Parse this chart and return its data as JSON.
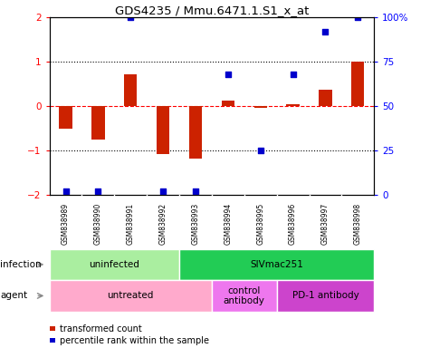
{
  "title": "GDS4235 / Mmu.6471.1.S1_x_at",
  "samples": [
    "GSM838989",
    "GSM838990",
    "GSM838991",
    "GSM838992",
    "GSM838993",
    "GSM838994",
    "GSM838995",
    "GSM838996",
    "GSM838997",
    "GSM838998"
  ],
  "red_values": [
    -0.5,
    -0.75,
    0.72,
    -1.08,
    -1.18,
    0.12,
    -0.04,
    0.05,
    0.38,
    1.0
  ],
  "blue_values_pct": [
    2,
    2,
    100,
    2,
    2,
    68,
    25,
    68,
    92,
    100
  ],
  "ylim": [
    -2,
    2
  ],
  "y2lim": [
    0,
    100
  ],
  "yticks_left": [
    -2,
    -1,
    0,
    1,
    2
  ],
  "yticks_right": [
    0,
    25,
    50,
    75,
    100
  ],
  "bar_color": "#CC2200",
  "dot_color": "#0000CC",
  "bar_width": 0.4,
  "infection_groups": [
    {
      "label": "uninfected",
      "start": 0,
      "end": 4,
      "color": "#AAEEA0"
    },
    {
      "label": "SIVmac251",
      "start": 4,
      "end": 10,
      "color": "#22CC55"
    }
  ],
  "agent_groups": [
    {
      "label": "untreated",
      "start": 0,
      "end": 5,
      "color": "#FFAACC"
    },
    {
      "label": "control\nantibody",
      "start": 5,
      "end": 7,
      "color": "#EE77EE"
    },
    {
      "label": "PD-1 antibody",
      "start": 7,
      "end": 10,
      "color": "#CC44CC"
    }
  ],
  "legend_labels": [
    "transformed count",
    "percentile rank within the sample"
  ],
  "infection_label": "infection",
  "agent_label": "agent",
  "sample_bg_color": "#CCCCCC",
  "sample_border_color": "#FFFFFF",
  "background_color": "#FFFFFF"
}
